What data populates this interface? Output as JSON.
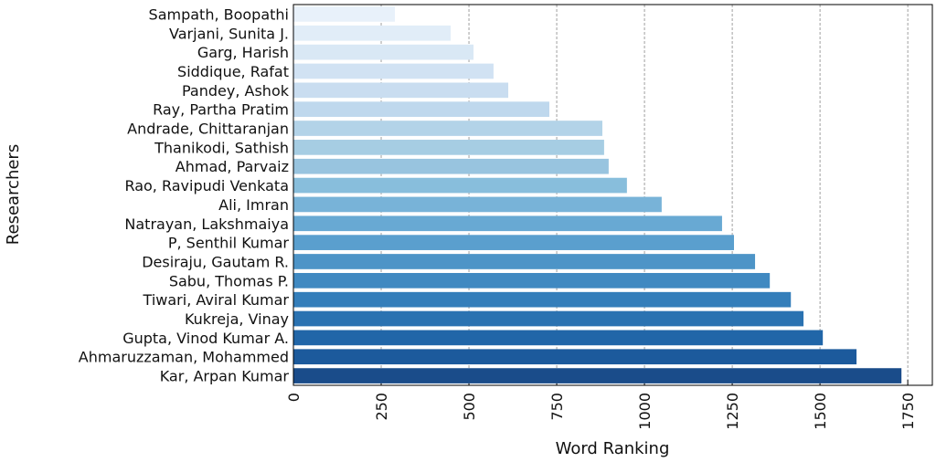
{
  "chart_data": {
    "type": "barh",
    "x_label": "Word Ranking",
    "y_label": "Researchers",
    "categories": [
      "Sampath, Boopathi",
      "Varjani, Sunita J.",
      "Garg, Harish",
      "Siddique, Rafat",
      "Pandey, Ashok",
      "Ray, Partha Pratim",
      "Andrade, Chittaranjan",
      "Thanikodi, Sathish",
      "Ahmad, Parvaiz",
      "Rao, Ravipudi Venkata",
      "Ali, Imran",
      "Natrayan, Lakshmaiya",
      "P, Senthil Kumar",
      "Desiraju, Gautam R.",
      "Sabu, Thomas P.",
      "Tiwari, Aviral Kumar",
      "Kukreja, Vinay",
      "Gupta, Vinod Kumar A.",
      "Ahmaruzzaman, Mohammed",
      "Kar, Arpan Kumar"
    ],
    "values": [
      289,
      448,
      513,
      570,
      612,
      729,
      880,
      885,
      898,
      950,
      1049,
      1221,
      1255,
      1315,
      1357,
      1417,
      1453,
      1508,
      1604,
      1732
    ],
    "colors": [
      "#e8f1fa",
      "#e1edf8",
      "#d9e8f5",
      "#d1e2f3",
      "#c9ddf0",
      "#bfd8ed",
      "#b3d3e8",
      "#a6cde3",
      "#98c4df",
      "#88bedc",
      "#78b3d8",
      "#68a9d3",
      "#5a9fce",
      "#4d94c7",
      "#4089c1",
      "#347eba",
      "#2a72b1",
      "#2166a8",
      "#1c5a9c",
      "#1a4c8a"
    ],
    "xlim": [
      0,
      1820
    ],
    "xticks": [
      0,
      250,
      500,
      750,
      1000,
      1250,
      1500,
      1750
    ],
    "grid": true
  }
}
